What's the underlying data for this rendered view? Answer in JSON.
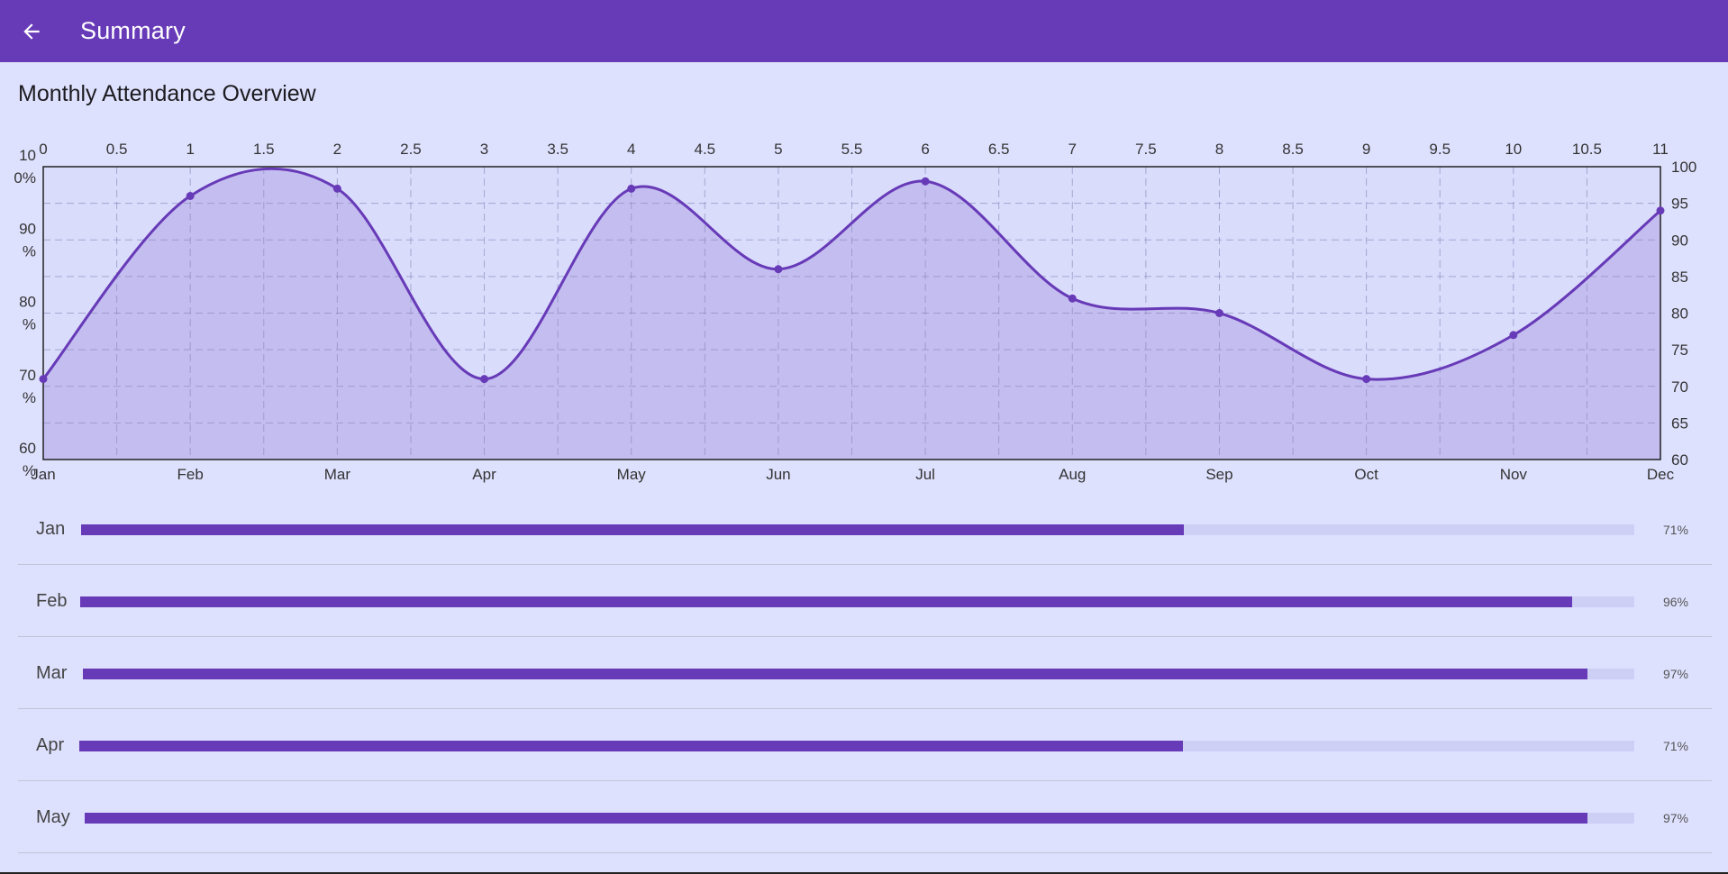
{
  "appbar": {
    "title": "Summary",
    "back_icon": "arrow-left-icon",
    "color": "#673ab7"
  },
  "page": {
    "title": "Monthly Attendance Overview"
  },
  "chart_data": {
    "type": "area",
    "curve": "smooth",
    "x": [
      0,
      1,
      2,
      3,
      4,
      5,
      6,
      7,
      8,
      9,
      10,
      11
    ],
    "categories": [
      "Jan",
      "Feb",
      "Mar",
      "Apr",
      "May",
      "Jun",
      "Jul",
      "Aug",
      "Sep",
      "Oct",
      "Nov",
      "Dec"
    ],
    "values": [
      71,
      96,
      97,
      71,
      97,
      86,
      98,
      82,
      80,
      71,
      77,
      94
    ],
    "xlim": [
      0,
      11
    ],
    "ylim": [
      60,
      100
    ],
    "top_ticks": [
      "0",
      "0.5",
      "1",
      "1.5",
      "2",
      "2.5",
      "3",
      "3.5",
      "4",
      "4.5",
      "5",
      "5.5",
      "6",
      "6.5",
      "7",
      "7.5",
      "8",
      "8.5",
      "9",
      "9.5",
      "10",
      "10.5",
      "11"
    ],
    "left_ticks": [
      {
        "value": 100,
        "lines": [
          "10",
          "0%"
        ]
      },
      {
        "value": 90,
        "lines": [
          "90",
          "%"
        ]
      },
      {
        "value": 80,
        "lines": [
          "80",
          "%"
        ]
      },
      {
        "value": 70,
        "lines": [
          "70",
          "%"
        ]
      },
      {
        "value": 60,
        "lines": [
          "60",
          "%"
        ]
      }
    ],
    "right_ticks": [
      "100",
      "95",
      "90",
      "85",
      "80",
      "75",
      "70",
      "65",
      "60"
    ],
    "grid": true,
    "line_color": "#673ab7",
    "fill_color": "#c4bdf0"
  },
  "bars": [
    {
      "label": "Jan",
      "value": 71,
      "pct": "71%"
    },
    {
      "label": "Feb",
      "value": 96,
      "pct": "96%"
    },
    {
      "label": "Mar",
      "value": 97,
      "pct": "97%"
    },
    {
      "label": "Apr",
      "value": 71,
      "pct": "71%"
    },
    {
      "label": "May",
      "value": 97,
      "pct": "97%"
    }
  ]
}
